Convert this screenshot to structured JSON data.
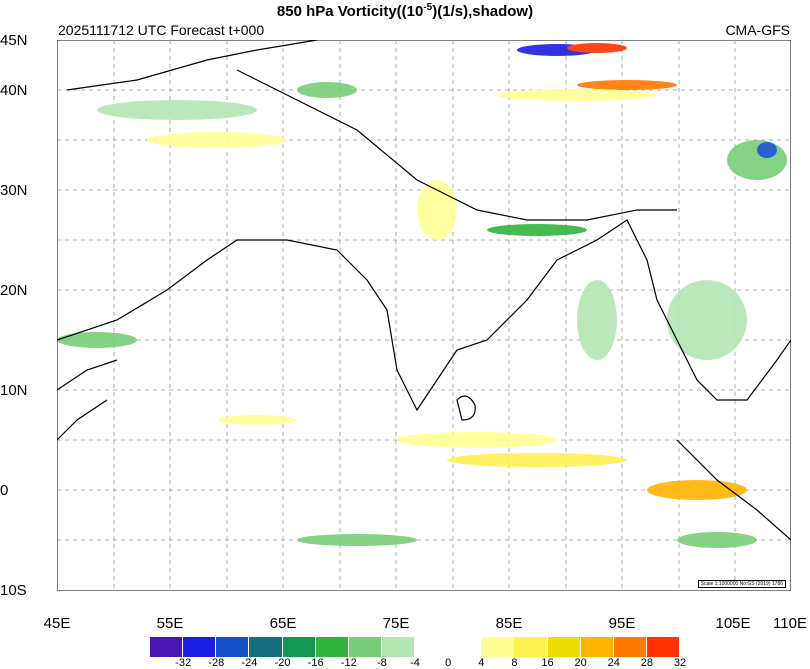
{
  "header": {
    "title_main": "850 hPa Vorticity((10",
    "title_sup": "-5",
    "title_tail": ")(1/s),shadow)",
    "init": "2025111712 UTC Forecast t+000",
    "model": "CMA-GFS"
  },
  "axes": {
    "lat_labels": [
      "45N",
      "40N",
      "30N",
      "20N",
      "10N",
      "0",
      "10S"
    ],
    "lon_labels": [
      "45E",
      "55E",
      "65E",
      "75E",
      "85E",
      "95E",
      "105E",
      "110E"
    ]
  },
  "colorbar": {
    "labels": [
      "-32",
      "-28",
      "-24",
      "-20",
      "-16",
      "-12",
      "-8",
      "-4",
      "0",
      "4",
      "8",
      "16",
      "20",
      "24",
      "28",
      "32"
    ],
    "colors": [
      "#4a14b4",
      "#1c1ee0",
      "#1450c8",
      "#146e7a",
      "#149650",
      "#32b43c",
      "#78cd78",
      "#b4e6b4",
      "#ffffff",
      "#ffffff",
      "#ffff96",
      "#fff050",
      "#f0dc00",
      "#ffb400",
      "#ff7800",
      "#ff3200"
    ]
  },
  "map_note": "Scale 1:1000000 No:GS (2019) 1786"
}
